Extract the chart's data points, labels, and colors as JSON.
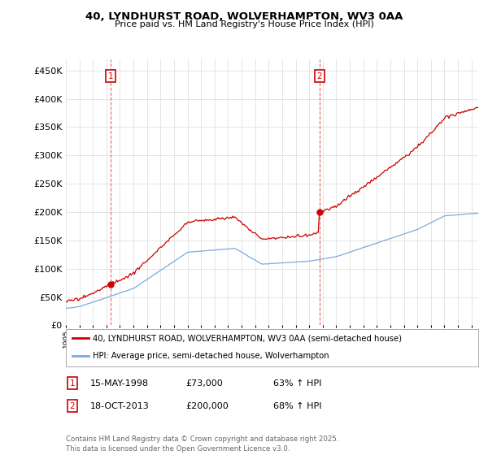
{
  "title1": "40, LYNDHURST ROAD, WOLVERHAMPTON, WV3 0AA",
  "title2": "Price paid vs. HM Land Registry's House Price Index (HPI)",
  "sale1_date": "15-MAY-1998",
  "sale1_price": 73000,
  "sale1_hpi": "63% ↑ HPI",
  "sale1_label": "1",
  "sale2_date": "18-OCT-2013",
  "sale2_price": 200000,
  "sale2_hpi": "68% ↑ HPI",
  "sale2_label": "2",
  "legend1": "40, LYNDHURST ROAD, WOLVERHAMPTON, WV3 0AA (semi-detached house)",
  "legend2": "HPI: Average price, semi-detached house, Wolverhampton",
  "footer": "Contains HM Land Registry data © Crown copyright and database right 2025.\nThis data is licensed under the Open Government Licence v3.0.",
  "red_color": "#cc0000",
  "blue_color": "#7aaadd",
  "background": "#ffffff",
  "grid_color": "#e0e0e0",
  "ylim_max": 470000,
  "ytick_step": 50000,
  "xstart": 1995,
  "xend": 2025.5
}
